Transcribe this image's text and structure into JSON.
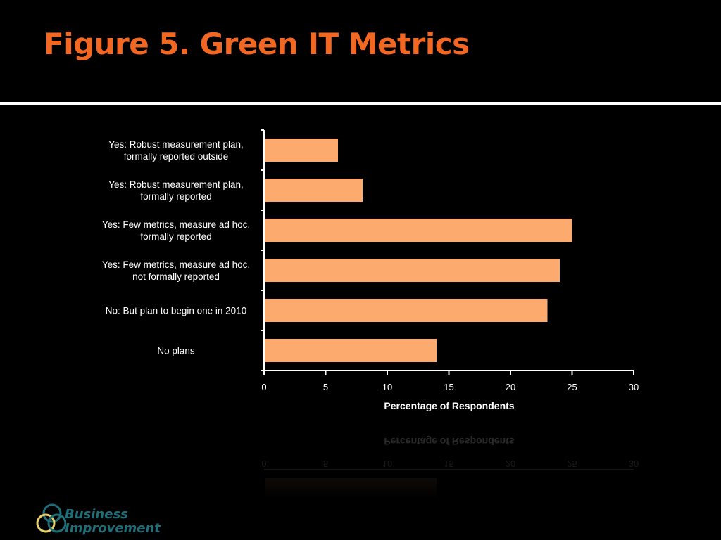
{
  "slide": {
    "title": "Figure 5. Green IT Metrics"
  },
  "logo": {
    "line1": "Business",
    "line2": "Improvement"
  },
  "colors": {
    "background": "#000000",
    "title": "#f26722",
    "bar": "#fcaa6e",
    "text": "#ffffff",
    "logo_text": "#1f6f7a"
  },
  "chart_data": {
    "type": "bar",
    "orientation": "horizontal",
    "categories": [
      [
        "Yes: Robust measurement plan,",
        "formally reported outside"
      ],
      [
        "Yes: Robust measurement plan,",
        "formally reported"
      ],
      [
        "Yes: Few metrics, measure ad hoc,",
        "formally reported"
      ],
      [
        "Yes: Few metrics, measure ad hoc,",
        "not formally reported"
      ],
      [
        "No: But plan to begin one in 2010"
      ],
      [
        "No plans"
      ]
    ],
    "values": [
      6,
      8,
      25,
      24,
      23,
      14
    ],
    "xlabel": "Percentage of Respondents",
    "ylabel": "",
    "xlim": [
      0,
      30
    ],
    "xticks": [
      0,
      5,
      10,
      15,
      20,
      25,
      30
    ],
    "grid": false,
    "legend": "none"
  }
}
